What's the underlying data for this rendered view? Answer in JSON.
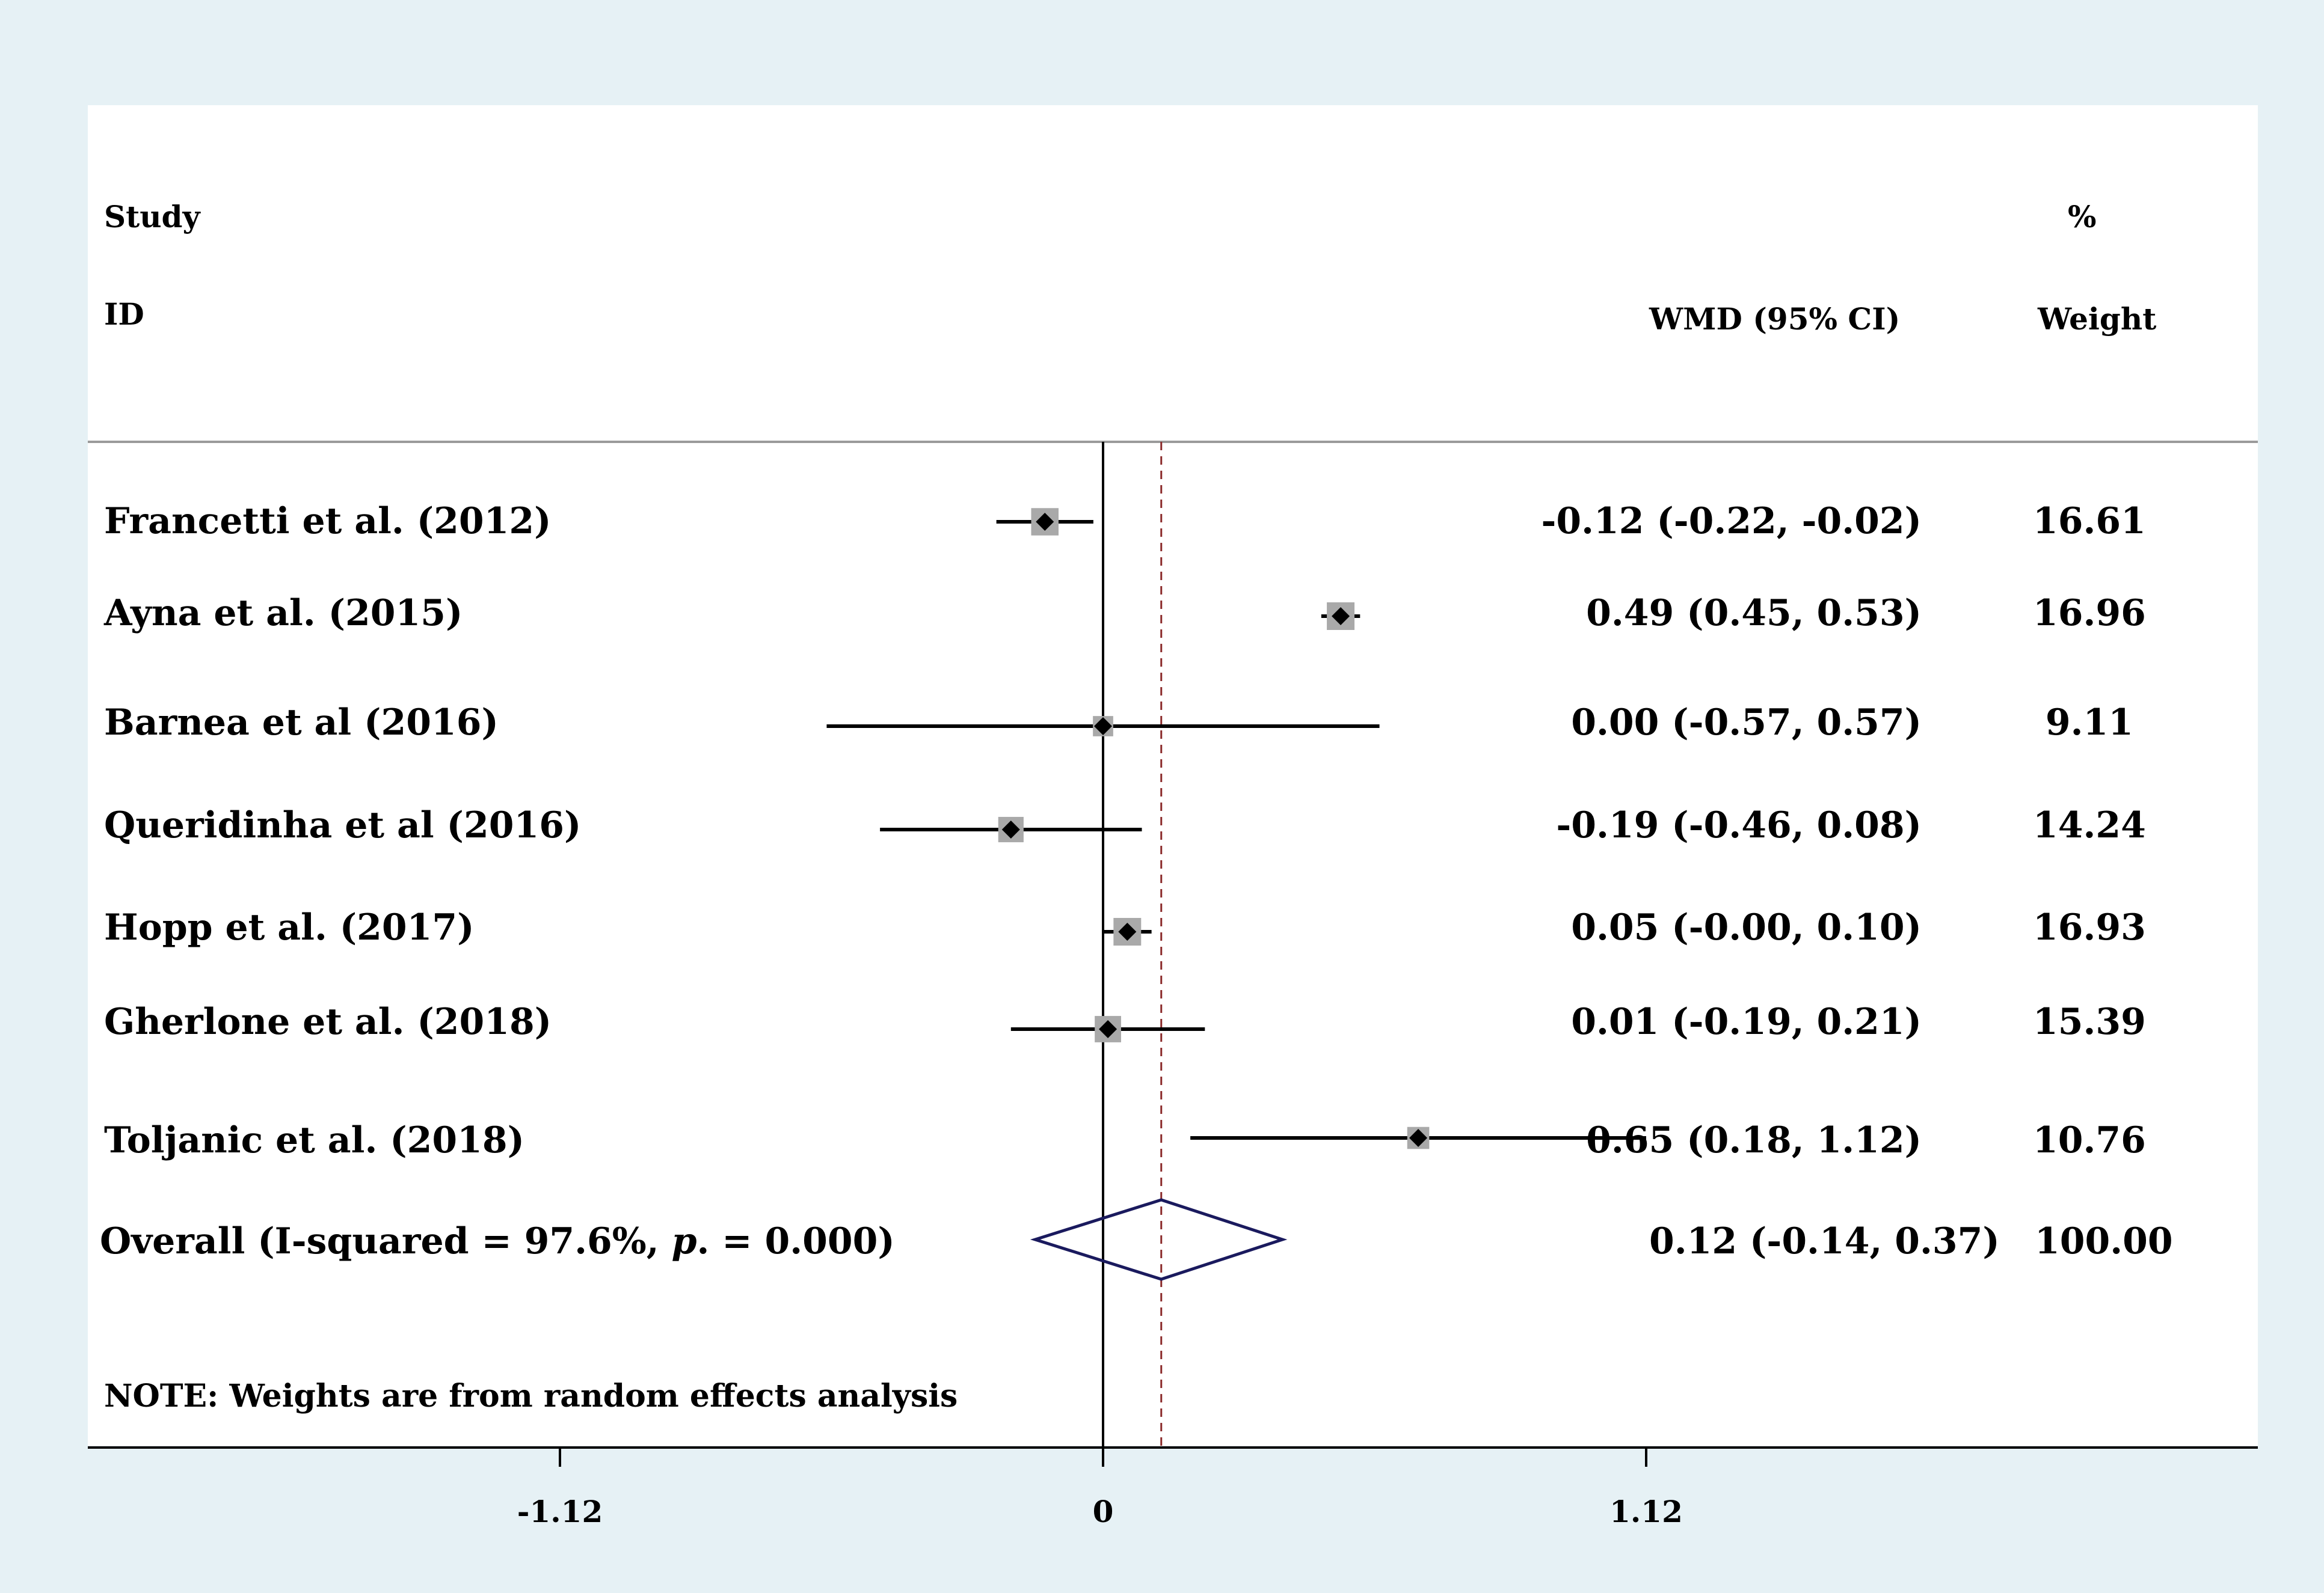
{
  "chart_data": {
    "type": "forest",
    "header": {
      "study_line1": "Study",
      "study_line2": "ID",
      "effect_label": "WMD (95% CI)",
      "weight_line1": "%",
      "weight_line2": "Weight"
    },
    "studies": [
      {
        "label": "Francetti et al. (2012)",
        "estimate": -0.12,
        "lower": -0.22,
        "upper": -0.02,
        "ci_text": "-0.12 (-0.22, -0.02)",
        "weight": 16.61,
        "weight_text": "16.61"
      },
      {
        "label": "Ayna et al. (2015)",
        "estimate": 0.49,
        "lower": 0.45,
        "upper": 0.53,
        "ci_text": "0.49 (0.45, 0.53)",
        "weight": 16.96,
        "weight_text": "16.96"
      },
      {
        "label": "Barnea et al (2016)",
        "estimate": 0.0,
        "lower": -0.57,
        "upper": 0.57,
        "ci_text": "0.00 (-0.57, 0.57)",
        "weight": 9.11,
        "weight_text": "9.11"
      },
      {
        "label": "Queridinha et al (2016)",
        "estimate": -0.19,
        "lower": -0.46,
        "upper": 0.08,
        "ci_text": "-0.19 (-0.46, 0.08)",
        "weight": 14.24,
        "weight_text": "14.24"
      },
      {
        "label": "Hopp et al. (2017)",
        "estimate": 0.05,
        "lower": -0.0,
        "upper": 0.1,
        "ci_text": "0.05 (-0.00, 0.10)",
        "weight": 16.93,
        "weight_text": "16.93"
      },
      {
        "label": "Gherlone et al. (2018)",
        "estimate": 0.01,
        "lower": -0.19,
        "upper": 0.21,
        "ci_text": "0.01 (-0.19, 0.21)",
        "weight": 15.39,
        "weight_text": "15.39"
      },
      {
        "label": "Toljanic et al. (2018)",
        "estimate": 0.65,
        "lower": 0.18,
        "upper": 1.12,
        "ci_text": "0.65 (0.18, 1.12)",
        "weight": 10.76,
        "weight_text": "10.76"
      }
    ],
    "overall": {
      "label_prefix": "Overall (I-squared = 97.6%, ",
      "label_p": "p",
      "label_suffix": ". = 0.000)",
      "estimate": 0.12,
      "lower": -0.14,
      "upper": 0.37,
      "ci_text": "0.12 (-0.14, 0.37)",
      "weight_text": "100.00"
    },
    "note": "NOTE: Weights are from random effects analysis",
    "x_ticks": [
      {
        "value": -1.12,
        "label": "-1.12"
      },
      {
        "value": 0,
        "label": "0"
      },
      {
        "value": 1.12,
        "label": "1.12"
      }
    ],
    "xlim": [
      -2.09,
      2.38
    ],
    "null_line": 0,
    "colors": {
      "background": "#e6f1f5",
      "panel": "#ffffff",
      "overall_diamond": "#1a1a5e",
      "overall_line": "#8b2a2a",
      "weight_box": "#a9a9a9",
      "point": "#000000"
    }
  }
}
